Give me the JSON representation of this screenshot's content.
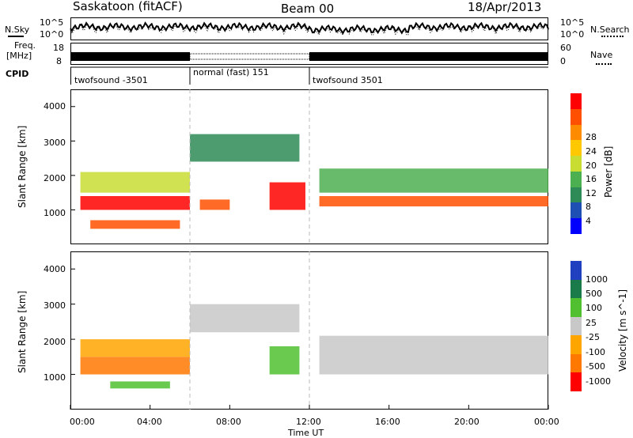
{
  "header": {
    "station": "Saskatoon (fitACF)",
    "beam": "Beam 00",
    "date": "18/Apr/2013"
  },
  "strips": {
    "nsky_label": "N.Sky",
    "nsearch_label": "N.Search",
    "noise_ticks": [
      "10^5",
      "10^0"
    ],
    "freq_label_1": "Freq.",
    "freq_label_2": "[MHz]",
    "freq_ticks": [
      "18",
      "8"
    ],
    "nave_label": "Nave",
    "nave_ticks": [
      "60",
      "0"
    ],
    "cpid_label": "CPID",
    "cpid_segments": [
      {
        "label": "twofsound -3501",
        "start_hour": 0,
        "end_hour": 6.0
      },
      {
        "label": "normal (fast) 151",
        "start_hour": 6.0,
        "end_hour": 12.0
      },
      {
        "label": "twofsound 3501",
        "start_hour": 12.0,
        "end_hour": 24.0
      }
    ]
  },
  "x_axis": {
    "label": "Time UT",
    "ticks": [
      "00:00",
      "04:00",
      "08:00",
      "12:00",
      "16:00",
      "20:00",
      "00:00"
    ]
  },
  "chart_data": [
    {
      "type": "heatmap",
      "title": "",
      "parameter": "Power",
      "xlabel": "Time UT",
      "ylabel": "Slant Range [km]",
      "xlim_hours": [
        0,
        24
      ],
      "ylim": [
        0,
        4500
      ],
      "yticks": [
        "1000",
        "2000",
        "3000",
        "4000"
      ],
      "colorbar": {
        "label": "Power [dB]",
        "ticks": [
          "4",
          "8",
          "12",
          "16",
          "20",
          "24",
          "28"
        ],
        "colors": [
          "#0000ff",
          "#1e4fb4",
          "#2e8b57",
          "#4caf50",
          "#c8dc32",
          "#ffc800",
          "#ff8c00",
          "#ff5000",
          "#ff0000"
        ]
      },
      "regions": [
        {
          "start_hour": 0.5,
          "end_hour": 6.0,
          "range_km": [
            1000,
            1400
          ],
          "value_db": 28
        },
        {
          "start_hour": 0.5,
          "end_hour": 6.0,
          "range_km": [
            1500,
            2100
          ],
          "value_db": 14
        },
        {
          "start_hour": 1.0,
          "end_hour": 5.5,
          "range_km": [
            450,
            700
          ],
          "value_db": 26
        },
        {
          "start_hour": 6.0,
          "end_hour": 11.5,
          "range_km": [
            2400,
            3200
          ],
          "value_db": 10
        },
        {
          "start_hour": 6.5,
          "end_hour": 8.0,
          "range_km": [
            1000,
            1300
          ],
          "value_db": 26
        },
        {
          "start_hour": 10.0,
          "end_hour": 11.8,
          "range_km": [
            1000,
            1800
          ],
          "value_db": 27
        },
        {
          "start_hour": 12.5,
          "end_hour": 24.0,
          "range_km": [
            1100,
            1400
          ],
          "value_db": 26
        },
        {
          "start_hour": 12.5,
          "end_hour": 24.0,
          "range_km": [
            1500,
            2200
          ],
          "value_db": 13
        }
      ]
    },
    {
      "type": "heatmap",
      "title": "",
      "parameter": "Velocity",
      "xlabel": "Time UT",
      "ylabel": "Slant Range [km]",
      "xlim_hours": [
        0,
        24
      ],
      "ylim": [
        0,
        4500
      ],
      "yticks": [
        "1000",
        "2000",
        "3000",
        "4000"
      ],
      "colorbar": {
        "label": "Velocity [m s^-1]",
        "ticks": [
          "1000",
          "500",
          "100",
          "25",
          "-25",
          "-100",
          "-500",
          "-1000"
        ],
        "colors": [
          "#2040c0",
          "#1a7a4a",
          "#50c030",
          "#c8c8c8",
          "#ffa500",
          "#ff7800",
          "#ff0000"
        ]
      },
      "regions": [
        {
          "start_hour": 0.5,
          "end_hour": 6.0,
          "range_km": [
            1000,
            1500
          ],
          "value_ms": -150
        },
        {
          "start_hour": 0.5,
          "end_hour": 6.0,
          "range_km": [
            1500,
            2000
          ],
          "value_ms": -80
        },
        {
          "start_hour": 2.0,
          "end_hour": 5.0,
          "range_km": [
            600,
            800
          ],
          "value_ms": 120
        },
        {
          "start_hour": 6.0,
          "end_hour": 11.5,
          "range_km": [
            2200,
            3000
          ],
          "value_ms": 0
        },
        {
          "start_hour": 10.0,
          "end_hour": 11.5,
          "range_km": [
            1000,
            1800
          ],
          "value_ms": 150
        },
        {
          "start_hour": 12.5,
          "end_hour": 24.0,
          "range_km": [
            1000,
            2100
          ],
          "value_ms": 0
        }
      ]
    }
  ],
  "colors": {
    "ground_scatter": "#c8c8c8",
    "axes": "#000000"
  }
}
